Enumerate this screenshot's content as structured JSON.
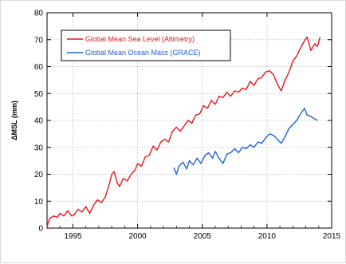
{
  "chart_data": {
    "type": "line",
    "title": "",
    "xlabel": "",
    "ylabel": "ΔMSL (mm)",
    "xlim": [
      1993,
      2015
    ],
    "ylim": [
      0,
      80
    ],
    "x_ticks": [
      1995,
      2000,
      2005,
      2010,
      2015
    ],
    "y_ticks": [
      0,
      10,
      20,
      30,
      40,
      50,
      60,
      70,
      80
    ],
    "grid": true,
    "legend": "top-left",
    "series": [
      {
        "name": "Global Mean Sea Level (Altimetry)",
        "color": "#e8141c",
        "points": [
          [
            1993.0,
            0.5
          ],
          [
            1993.2,
            3.5
          ],
          [
            1993.5,
            4.5
          ],
          [
            1993.8,
            4
          ],
          [
            1994.0,
            5.5
          ],
          [
            1994.3,
            4.5
          ],
          [
            1994.6,
            6.5
          ],
          [
            1994.9,
            4.5
          ],
          [
            1995.1,
            5
          ],
          [
            1995.4,
            7
          ],
          [
            1995.7,
            6
          ],
          [
            1996.0,
            8
          ],
          [
            1996.3,
            5.5
          ],
          [
            1996.6,
            8.5
          ],
          [
            1996.9,
            10.5
          ],
          [
            1997.2,
            9.5
          ],
          [
            1997.5,
            11.5
          ],
          [
            1997.8,
            16
          ],
          [
            1998.0,
            20
          ],
          [
            1998.2,
            21
          ],
          [
            1998.4,
            17
          ],
          [
            1998.6,
            15.5
          ],
          [
            1998.9,
            18.5
          ],
          [
            1999.2,
            17.5
          ],
          [
            1999.5,
            20
          ],
          [
            1999.8,
            21.5
          ],
          [
            2000.0,
            24
          ],
          [
            2000.3,
            23
          ],
          [
            2000.6,
            26.5
          ],
          [
            2000.9,
            27
          ],
          [
            2001.2,
            30.5
          ],
          [
            2001.5,
            29
          ],
          [
            2001.8,
            32
          ],
          [
            2002.1,
            33
          ],
          [
            2002.4,
            32
          ],
          [
            2002.7,
            36
          ],
          [
            2003.0,
            37.5
          ],
          [
            2003.3,
            36
          ],
          [
            2003.6,
            38
          ],
          [
            2003.9,
            40
          ],
          [
            2004.2,
            39
          ],
          [
            2004.5,
            42
          ],
          [
            2004.8,
            42.5
          ],
          [
            2005.1,
            45.5
          ],
          [
            2005.4,
            44.5
          ],
          [
            2005.7,
            47.5
          ],
          [
            2006.0,
            46
          ],
          [
            2006.3,
            49
          ],
          [
            2006.6,
            48.5
          ],
          [
            2006.9,
            50.5
          ],
          [
            2007.2,
            49
          ],
          [
            2007.5,
            51
          ],
          [
            2007.8,
            50.5
          ],
          [
            2008.1,
            52
          ],
          [
            2008.4,
            51.5
          ],
          [
            2008.7,
            54.5
          ],
          [
            2009.0,
            53
          ],
          [
            2009.3,
            55.5
          ],
          [
            2009.6,
            56
          ],
          [
            2009.9,
            58
          ],
          [
            2010.2,
            58.5
          ],
          [
            2010.5,
            57
          ],
          [
            2010.8,
            53.5
          ],
          [
            2011.1,
            51
          ],
          [
            2011.4,
            55
          ],
          [
            2011.7,
            58
          ],
          [
            2012.0,
            62
          ],
          [
            2012.3,
            64
          ],
          [
            2012.6,
            67
          ],
          [
            2012.9,
            69.5
          ],
          [
            2013.1,
            71
          ],
          [
            2013.4,
            66
          ],
          [
            2013.7,
            68.5
          ],
          [
            2013.9,
            67.5
          ],
          [
            2014.1,
            71
          ]
        ]
      },
      {
        "name": "Global Mean Ocean Mass (GRACE)",
        "color": "#1f5fd6",
        "points": [
          [
            2002.8,
            22.5
          ],
          [
            2003.0,
            20
          ],
          [
            2003.2,
            23
          ],
          [
            2003.5,
            24.5
          ],
          [
            2003.8,
            22
          ],
          [
            2004.0,
            25
          ],
          [
            2004.3,
            23.5
          ],
          [
            2004.6,
            26
          ],
          [
            2004.9,
            24
          ],
          [
            2005.2,
            27
          ],
          [
            2005.5,
            28
          ],
          [
            2005.8,
            26
          ],
          [
            2006.0,
            28.5
          ],
          [
            2006.3,
            26
          ],
          [
            2006.6,
            24
          ],
          [
            2006.9,
            27.5
          ],
          [
            2007.2,
            28
          ],
          [
            2007.5,
            29.5
          ],
          [
            2007.8,
            28
          ],
          [
            2008.1,
            30
          ],
          [
            2008.4,
            29.5
          ],
          [
            2008.7,
            31
          ],
          [
            2009.0,
            30
          ],
          [
            2009.3,
            32
          ],
          [
            2009.6,
            31.5
          ],
          [
            2009.9,
            33.5
          ],
          [
            2010.2,
            35
          ],
          [
            2010.5,
            34.5
          ],
          [
            2010.8,
            33
          ],
          [
            2011.1,
            31.5
          ],
          [
            2011.4,
            34
          ],
          [
            2011.7,
            37
          ],
          [
            2012.0,
            38.5
          ],
          [
            2012.3,
            40
          ],
          [
            2012.6,
            42.5
          ],
          [
            2012.9,
            44.5
          ],
          [
            2013.1,
            42
          ],
          [
            2013.4,
            41.5
          ],
          [
            2013.7,
            40.5
          ],
          [
            2013.9,
            40
          ]
        ]
      }
    ]
  }
}
